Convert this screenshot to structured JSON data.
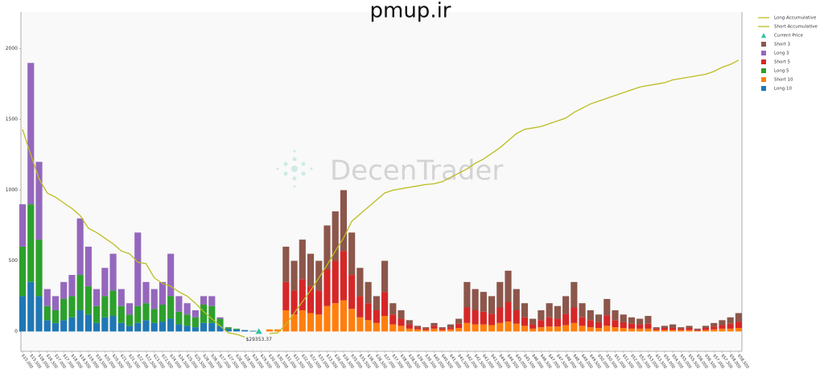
{
  "chart_data": {
    "type": "bar",
    "title": "pmup.ir",
    "watermark": "DecenTrader",
    "legend": "upper right",
    "ylim": [
      -140,
      2260
    ],
    "yticks": [
      0,
      500,
      1000,
      1500,
      2000
    ],
    "xlim": [
      14900,
      58700
    ],
    "x": [
      15000,
      15500,
      16000,
      16500,
      17000,
      17500,
      18000,
      18500,
      19000,
      19500,
      20000,
      20500,
      21000,
      21500,
      22000,
      22500,
      23000,
      23500,
      24000,
      24500,
      25000,
      25500,
      26000,
      26500,
      27000,
      27500,
      28000,
      28500,
      29000,
      29500,
      30000,
      30500,
      31000,
      31500,
      32000,
      32500,
      33000,
      33500,
      34000,
      34500,
      35000,
      35500,
      36000,
      36500,
      37000,
      37500,
      38000,
      38500,
      39000,
      39500,
      40000,
      40500,
      41000,
      41500,
      42000,
      42500,
      43000,
      43500,
      44000,
      44500,
      45000,
      45500,
      46000,
      46500,
      47000,
      47500,
      48000,
      48500,
      49000,
      49500,
      50000,
      50500,
      51000,
      51500,
      52000,
      52500,
      53000,
      53500,
      54000,
      54500,
      55000,
      55500,
      56000,
      56500,
      57000,
      57500,
      58000,
      58500
    ],
    "xticks": [
      {
        "value": 15000,
        "label": "$15,000"
      },
      {
        "value": 15500,
        "label": "$15,500"
      },
      {
        "value": 16000,
        "label": "$16,000"
      },
      {
        "value": 16500,
        "label": "$16,500"
      },
      {
        "value": 17000,
        "label": "$17,000"
      },
      {
        "value": 17500,
        "label": "$17,500"
      },
      {
        "value": 18000,
        "label": "$18,000"
      },
      {
        "value": 18500,
        "label": "$18,500"
      },
      {
        "value": 19000,
        "label": "$19,000"
      },
      {
        "value": 19500,
        "label": "$19,500"
      },
      {
        "value": 20000,
        "label": "$20,000"
      },
      {
        "value": 20500,
        "label": "$20,500"
      },
      {
        "value": 21000,
        "label": "$21,000"
      },
      {
        "value": 21500,
        "label": "$21,500"
      },
      {
        "value": 22000,
        "label": "$22,000"
      },
      {
        "value": 22500,
        "label": "$22,500"
      },
      {
        "value": 23000,
        "label": "$23,000"
      },
      {
        "value": 23500,
        "label": "$23,500"
      },
      {
        "value": 24000,
        "label": "$24,000"
      },
      {
        "value": 24500,
        "label": "$24,500"
      },
      {
        "value": 25000,
        "label": "$25,000"
      },
      {
        "value": 25500,
        "label": "$25,500"
      },
      {
        "value": 26000,
        "label": "$26,000"
      },
      {
        "value": 26500,
        "label": "$26,500"
      },
      {
        "value": 27000,
        "label": "$27,000"
      },
      {
        "value": 27500,
        "label": "$27,500"
      },
      {
        "value": 28000,
        "label": "$28,000"
      },
      {
        "value": 28500,
        "label": "$28,500"
      },
      {
        "value": 29000,
        "label": "$29,000"
      },
      {
        "value": 29500,
        "label": "$29,500"
      },
      {
        "value": 30000,
        "label": "$30,000"
      },
      {
        "value": 30500,
        "label": "$30,500"
      },
      {
        "value": 31000,
        "label": "$31,000"
      },
      {
        "value": 31500,
        "label": "$31,500"
      },
      {
        "value": 32000,
        "label": "$32,000"
      },
      {
        "value": 32500,
        "label": "$32,500"
      },
      {
        "value": 33000,
        "label": "$33,000"
      },
      {
        "value": 33500,
        "label": "$33,500"
      },
      {
        "value": 34000,
        "label": "$34,000"
      },
      {
        "value": 34500,
        "label": "$34,500"
      },
      {
        "value": 35000,
        "label": "$35,000"
      },
      {
        "value": 35500,
        "label": "$35,500"
      },
      {
        "value": 36000,
        "label": "$36,000"
      },
      {
        "value": 36500,
        "label": "$36,500"
      },
      {
        "value": 37000,
        "label": "$37,000"
      },
      {
        "value": 37500,
        "label": "$37,500"
      },
      {
        "value": 38000,
        "label": "$38,000"
      },
      {
        "value": 38500,
        "label": "$38,500"
      },
      {
        "value": 39000,
        "label": "$39,000"
      },
      {
        "value": 39500,
        "label": "$39,500"
      },
      {
        "value": 40000,
        "label": "$40,000"
      },
      {
        "value": 40500,
        "label": "$40,500"
      },
      {
        "value": 41000,
        "label": "$41,000"
      },
      {
        "value": 41500,
        "label": "$41,500"
      },
      {
        "value": 42000,
        "label": "$42,000"
      },
      {
        "value": 42500,
        "label": "$42,500"
      },
      {
        "value": 43000,
        "label": "$43,000"
      },
      {
        "value": 43500,
        "label": "$43,500"
      },
      {
        "value": 44000,
        "label": "$44,000"
      },
      {
        "value": 44500,
        "label": "$44,500"
      },
      {
        "value": 45000,
        "label": "$45,000"
      },
      {
        "value": 45500,
        "label": "$45,500"
      },
      {
        "value": 46000,
        "label": "$46,000"
      },
      {
        "value": 46500,
        "label": "$46,500"
      },
      {
        "value": 47000,
        "label": "$47,000"
      },
      {
        "value": 47500,
        "label": "$47,500"
      },
      {
        "value": 48000,
        "label": "$48,000"
      },
      {
        "value": 48500,
        "label": "$48,500"
      },
      {
        "value": 49000,
        "label": "$49,000"
      },
      {
        "value": 49500,
        "label": "$49,500"
      },
      {
        "value": 50000,
        "label": "$50,000"
      },
      {
        "value": 50500,
        "label": "$50,500"
      },
      {
        "value": 51000,
        "label": "$51,000"
      },
      {
        "value": 51500,
        "label": "$51,500"
      },
      {
        "value": 52000,
        "label": "$52,000"
      },
      {
        "value": 52500,
        "label": "$52,500"
      },
      {
        "value": 53000,
        "label": "$53,000"
      },
      {
        "value": 53500,
        "label": "$53,500"
      },
      {
        "value": 54000,
        "label": "$54,000"
      },
      {
        "value": 54500,
        "label": "$54,500"
      },
      {
        "value": 55000,
        "label": "$55,000"
      },
      {
        "value": 55500,
        "label": "$55,500"
      },
      {
        "value": 56000,
        "label": "$56,000"
      },
      {
        "value": 56500,
        "label": "$56,500"
      },
      {
        "value": 57000,
        "label": "$57,000"
      },
      {
        "value": 57500,
        "label": "$57,500"
      },
      {
        "value": 58000,
        "label": "$58,000"
      },
      {
        "value": 58500,
        "label": "$58,500"
      }
    ],
    "current_price": {
      "name": "Current Price",
      "value": 29353.37,
      "label": "$29353.37",
      "color": "#2ec4a0"
    },
    "series": [
      {
        "name": "Long Accumulative",
        "type": "line",
        "color": "#bcbd22",
        "values": [
          1430,
          1250,
          1080,
          980,
          950,
          910,
          870,
          820,
          730,
          700,
          660,
          620,
          570,
          550,
          490,
          480,
          380,
          340,
          320,
          280,
          250,
          200,
          140,
          90,
          40,
          -10,
          -20,
          -40,
          null,
          null,
          null,
          null,
          null,
          null,
          null,
          null,
          null,
          null,
          null,
          null,
          null,
          null,
          null,
          null,
          null,
          null,
          null,
          null,
          null,
          null,
          null,
          null,
          null,
          null,
          null,
          null,
          null,
          null,
          null,
          null,
          null,
          null,
          null,
          null,
          null,
          null,
          null,
          null,
          null,
          null,
          null,
          null,
          null,
          null,
          null,
          null,
          null,
          null,
          null,
          null,
          null,
          null,
          null,
          null,
          null,
          null,
          null,
          null
        ]
      },
      {
        "name": "Short Accumulative",
        "type": "line",
        "color": "#bcbd22",
        "values": [
          null,
          null,
          null,
          null,
          null,
          null,
          null,
          null,
          null,
          null,
          null,
          null,
          null,
          null,
          null,
          null,
          null,
          null,
          null,
          null,
          null,
          null,
          null,
          null,
          null,
          null,
          null,
          null,
          null,
          null,
          -15,
          -10,
          50,
          130,
          210,
          290,
          380,
          470,
          570,
          660,
          780,
          830,
          880,
          930,
          980,
          1000,
          1010,
          1020,
          1030,
          1040,
          1045,
          1060,
          1090,
          1120,
          1150,
          1190,
          1220,
          1260,
          1300,
          1350,
          1400,
          1430,
          1440,
          1450,
          1470,
          1490,
          1510,
          1550,
          1580,
          1610,
          1630,
          1650,
          1670,
          1690,
          1710,
          1730,
          1740,
          1750,
          1760,
          1780,
          1790,
          1800,
          1810,
          1820,
          1840,
          1870,
          1890,
          1920
        ]
      },
      {
        "name": "Short 3",
        "type": "bar",
        "color": "#8c564b",
        "values": [
          0,
          0,
          0,
          0,
          0,
          0,
          0,
          0,
          0,
          0,
          0,
          0,
          0,
          0,
          0,
          0,
          0,
          0,
          0,
          0,
          0,
          0,
          0,
          0,
          0,
          0,
          0,
          0,
          0,
          0,
          0,
          0,
          250,
          210,
          280,
          230,
          210,
          310,
          350,
          430,
          300,
          200,
          150,
          100,
          220,
          80,
          60,
          30,
          10,
          10,
          20,
          10,
          20,
          35,
          180,
          150,
          140,
          125,
          180,
          220,
          150,
          100,
          40,
          70,
          100,
          90,
          125,
          180,
          100,
          70,
          55,
          115,
          70,
          55,
          45,
          40,
          55,
          10,
          15,
          25,
          10,
          15,
          10,
          15,
          25,
          35,
          45,
          60
        ]
      },
      {
        "name": "Long 3",
        "type": "bar",
        "color": "#9467bd",
        "values": [
          300,
          1000,
          550,
          120,
          100,
          120,
          150,
          400,
          280,
          120,
          200,
          260,
          120,
          80,
          520,
          150,
          140,
          160,
          300,
          110,
          80,
          50,
          60,
          70,
          10,
          0,
          0,
          0,
          0,
          0,
          0,
          0,
          0,
          0,
          0,
          0,
          0,
          0,
          0,
          0,
          0,
          0,
          0,
          0,
          0,
          0,
          0,
          0,
          0,
          0,
          0,
          0,
          0,
          0,
          0,
          0,
          0,
          0,
          0,
          0,
          0,
          0,
          0,
          0,
          0,
          0,
          0,
          0,
          0,
          0,
          0,
          0,
          0,
          0,
          0,
          0,
          0,
          0,
          0,
          0,
          0,
          0,
          0,
          0,
          0,
          0,
          0,
          0
        ]
      },
      {
        "name": "Short 5",
        "type": "bar",
        "color": "#d62728",
        "values": [
          0,
          0,
          0,
          0,
          0,
          0,
          0,
          0,
          0,
          0,
          0,
          0,
          0,
          0,
          0,
          0,
          0,
          0,
          0,
          0,
          0,
          0,
          0,
          0,
          0,
          0,
          0,
          0,
          0,
          0,
          0,
          0,
          200,
          170,
          220,
          190,
          170,
          260,
          300,
          350,
          240,
          150,
          120,
          90,
          170,
          70,
          50,
          30,
          15,
          10,
          20,
          10,
          15,
          30,
          110,
          100,
          90,
          80,
          110,
          140,
          95,
          60,
          30,
          50,
          65,
          55,
          80,
          110,
          60,
          50,
          40,
          75,
          50,
          40,
          35,
          30,
          35,
          10,
          15,
          15,
          10,
          15,
          5,
          15,
          20,
          25,
          35,
          45
        ]
      },
      {
        "name": "Long 5",
        "type": "bar",
        "color": "#2ca02c",
        "values": [
          350,
          550,
          400,
          100,
          90,
          150,
          150,
          250,
          200,
          120,
          150,
          180,
          120,
          80,
          120,
          120,
          100,
          120,
          160,
          90,
          80,
          70,
          130,
          120,
          50,
          10,
          5,
          0,
          0,
          0,
          0,
          0,
          0,
          0,
          0,
          0,
          0,
          0,
          0,
          0,
          0,
          0,
          0,
          0,
          0,
          0,
          0,
          0,
          0,
          0,
          0,
          0,
          0,
          0,
          0,
          0,
          0,
          0,
          0,
          0,
          0,
          0,
          0,
          0,
          0,
          0,
          0,
          0,
          0,
          0,
          0,
          0,
          0,
          0,
          0,
          0,
          0,
          0,
          0,
          0,
          0,
          0,
          0,
          0,
          0,
          0,
          0,
          0
        ]
      },
      {
        "name": "Short 10",
        "type": "bar",
        "color": "#ff7f0e",
        "values": [
          0,
          0,
          0,
          0,
          0,
          0,
          0,
          0,
          0,
          0,
          0,
          0,
          0,
          0,
          0,
          0,
          0,
          0,
          0,
          0,
          0,
          0,
          0,
          0,
          0,
          0,
          0,
          0,
          0,
          0,
          15,
          15,
          150,
          120,
          150,
          130,
          120,
          180,
          200,
          220,
          160,
          100,
          80,
          60,
          110,
          50,
          40,
          20,
          15,
          10,
          20,
          10,
          15,
          25,
          60,
          50,
          50,
          45,
          60,
          70,
          55,
          40,
          20,
          30,
          35,
          35,
          45,
          60,
          40,
          30,
          25,
          40,
          30,
          25,
          20,
          20,
          20,
          10,
          10,
          10,
          10,
          10,
          5,
          10,
          15,
          20,
          20,
          25
        ]
      },
      {
        "name": "Long 10",
        "type": "bar",
        "color": "#1f77b4",
        "values": [
          250,
          350,
          250,
          80,
          60,
          80,
          100,
          150,
          120,
          60,
          100,
          110,
          60,
          40,
          60,
          80,
          60,
          70,
          90,
          50,
          40,
          30,
          60,
          60,
          40,
          20,
          15,
          10,
          5,
          0,
          0,
          0,
          0,
          0,
          0,
          0,
          0,
          0,
          0,
          0,
          0,
          0,
          0,
          0,
          0,
          0,
          0,
          0,
          0,
          0,
          0,
          0,
          0,
          0,
          0,
          0,
          0,
          0,
          0,
          0,
          0,
          0,
          0,
          0,
          0,
          0,
          0,
          0,
          0,
          0,
          0,
          0,
          0,
          0,
          0,
          0,
          0,
          0,
          0,
          0,
          0,
          0,
          0,
          0,
          0,
          0,
          0,
          0
        ]
      }
    ]
  }
}
